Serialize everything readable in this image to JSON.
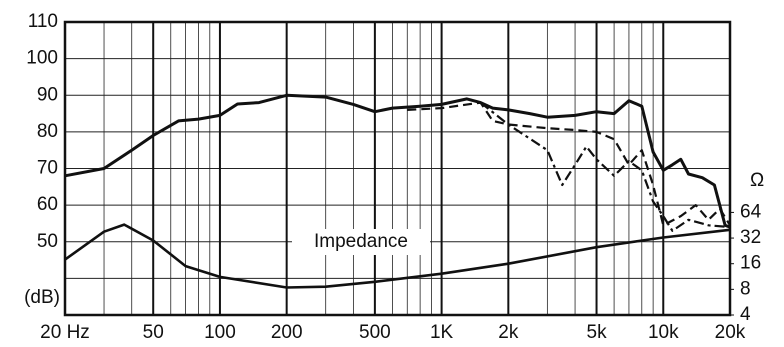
{
  "chart_data": {
    "type": "line",
    "annotation": "Impedance",
    "ylabel": "(dB)",
    "y2label": "Ω",
    "xscale": "log",
    "y2scale": "log",
    "xlim": [
      20,
      20000
    ],
    "ylim": [
      30,
      110
    ],
    "y2lim": [
      4,
      11000
    ],
    "xticks": [
      {
        "value": 20,
        "label": "20 Hz"
      },
      50,
      100,
      200,
      500,
      {
        "value": 1000,
        "label": "1K"
      },
      {
        "value": 2000,
        "label": "2k"
      },
      {
        "value": 5000,
        "label": "5k"
      },
      {
        "value": 10000,
        "label": "10k"
      },
      {
        "value": 20000,
        "label": "20k"
      }
    ],
    "xgrid": [
      30,
      40,
      60,
      70,
      80,
      90,
      300,
      400,
      600,
      700,
      800,
      900,
      3000,
      4000,
      6000,
      7000,
      8000,
      9000
    ],
    "yticks": [
      50,
      60,
      70,
      80,
      90,
      100,
      110
    ],
    "ygrid": [
      40,
      50,
      60,
      70,
      80,
      90,
      100
    ],
    "y2ticks": [
      4,
      8,
      16,
      32,
      64
    ],
    "grid": true,
    "series": [
      {
        "color": "#111111",
        "dash": "solid",
        "width": 3,
        "x": [
          20,
          30,
          40,
          50,
          65,
          80,
          100,
          120,
          150,
          200,
          300,
          400,
          500,
          600,
          800,
          1000,
          1300,
          1500,
          1700,
          2000,
          2500,
          3000,
          4000,
          5000,
          6000,
          7000,
          8000,
          9000,
          10000,
          11000,
          12000,
          13000,
          15000,
          17000,
          19000,
          20000
        ],
        "values": [
          68,
          70,
          75,
          79,
          83,
          83.5,
          84.5,
          87.6,
          88,
          90,
          89.5,
          87.5,
          85.5,
          86.5,
          87,
          87.5,
          89,
          88,
          86.5,
          86,
          85,
          84,
          84.5,
          85.5,
          85,
          88.5,
          87,
          74.5,
          69.5,
          71,
          72.5,
          68.5,
          67.5,
          65.5,
          54.5,
          54
        ]
      },
      {
        "color": "#111111",
        "dash": "dashed",
        "width": 2.2,
        "x": [
          700,
          1000,
          1500,
          1700,
          2000,
          3000,
          4000,
          5000,
          6000,
          7000,
          8000,
          9000,
          10000,
          12000,
          14000,
          16000,
          18000,
          20000
        ],
        "values": [
          86,
          86.5,
          88,
          83,
          82,
          81,
          80.5,
          80,
          78,
          71,
          75,
          65.5,
          54.5,
          57,
          60,
          56,
          59,
          54.5
        ]
      },
      {
        "color": "#111111",
        "dash": "dashdot",
        "width": 2.2,
        "x": [
          1500,
          2000,
          3000,
          3500,
          4000,
          4500,
          5000,
          6000,
          7000,
          8000,
          9000,
          10000,
          11000,
          13000,
          16000,
          20000
        ],
        "values": [
          88,
          82,
          75,
          65.5,
          71,
          76,
          72.5,
          68,
          72,
          69.5,
          61,
          57,
          53,
          56,
          54.5,
          54
        ]
      },
      {
        "color": "#111111",
        "dash": "solid",
        "width": 2.6,
        "axis": "y2",
        "x": [
          20,
          30,
          37,
          50,
          70,
          100,
          200,
          300,
          500,
          1000,
          2000,
          5000,
          10000,
          20000
        ],
        "values": [
          17.9,
          38,
          46,
          30,
          15,
          11.2,
          8.4,
          8.6,
          9.8,
          12.2,
          16,
          25,
          32.5,
          40
        ]
      }
    ]
  }
}
